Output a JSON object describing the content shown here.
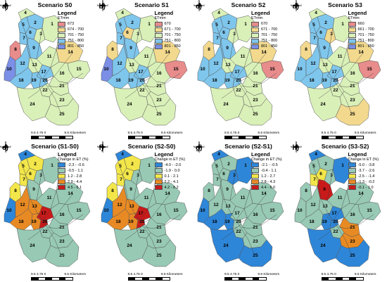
{
  "units_km": "9.5 4.75 0",
  "units_km_end": "9.5 Kilometers",
  "colors": {
    "et": [
      "#e88c8c",
      "#f2d98e",
      "#d9f0b8",
      "#7fc6ec",
      "#7b8fe6"
    ],
    "chg_s1": [
      "#2e86d8",
      "#97c9b4",
      "#f2e64a",
      "#e88a24",
      "#c81a1a"
    ],
    "chg_s3": [
      "#2e86d8",
      "#97c9b4",
      "#f2e64a",
      "#e88a24",
      "#c81a1a"
    ]
  },
  "panels": [
    {
      "label": "a)",
      "title": "Scenario S0",
      "legend_title": "Legend",
      "legend_unit": "ETmm",
      "legend": [
        "673",
        "674 - 700",
        "701 - 750",
        "751 - 800",
        "801 - 850"
      ]
    },
    {
      "label": "b)",
      "title": "Scenario S1",
      "legend_title": "Legend",
      "legend_unit": "ETmm",
      "legend": [
        "670",
        "671 - 700",
        "701 - 750",
        "751 - 800",
        "801 - 850"
      ]
    },
    {
      "label": "c)",
      "title": "Scenario S2",
      "legend_title": "Legend",
      "legend_unit": "ETmm",
      "legend": [
        "670",
        "671 - 700",
        "701 - 750",
        "751 - 800",
        "801 - 850"
      ]
    },
    {
      "label": "d)",
      "title": "Scenario S3",
      "legend_title": "Legend",
      "legend_unit": "ETmm",
      "legend": [
        "660",
        "661 - 700",
        "701 - 750",
        "751 - 800",
        "801 - 850"
      ]
    },
    {
      "label": "e)",
      "title": "Scenario (S1-S0)",
      "legend_title": "Legend",
      "legend_unit": "Change in ET (%)",
      "legend": [
        "-2.3 - -0.6",
        "-0.5 - 1.1",
        "1.2 - 2.8",
        "2.9 - 4.4",
        "4.5 - 6.1"
      ]
    },
    {
      "label": "f)",
      "title": "Scenario (S2-S0)",
      "legend_title": "Legend",
      "legend_unit": "Change in ET (%)",
      "legend": [
        "-4.0 - -2.0",
        "-1.9 - 0.0",
        "0.1 - 2.1",
        "2.2 - 4.1",
        "4.2 - 6.2"
      ]
    },
    {
      "label": "g)",
      "title": "Scenario (S2-S1)",
      "legend_title": "Legend",
      "legend_unit": "Change in ET (%)",
      "legend": [
        "-2.1 - -0.5",
        "-0.4 - 1.1",
        "1.2 - 2.7",
        "2.8 - 4.3",
        "4.4 - 6.0"
      ]
    },
    {
      "label": "h)",
      "title": "Scenario (S3-S2)",
      "legend_title": "Legend",
      "legend_unit": "Change in ET (%)",
      "legend": [
        "-5.0 - -3.8",
        "-3.7 - -2.6",
        "-2.5 - -1.4",
        "-1.3 - -0.2",
        "-0.1 - 1.0"
      ]
    }
  ],
  "subbasins": [
    "1",
    "2",
    "3",
    "4",
    "5",
    "6",
    "7",
    "8",
    "9",
    "10",
    "11",
    "12",
    "13",
    "14",
    "15",
    "16",
    "17",
    "18",
    "19",
    "20",
    "21",
    "22",
    "23",
    "24",
    "25"
  ],
  "north_labels": {
    "n": "N",
    "s": "S",
    "e": "E",
    "w": "W"
  },
  "fills": {
    "a": {
      "1": "#d9f0b8",
      "2": "#7fc6ec",
      "3": "#d9f0b8",
      "4": "#d9f0b8",
      "5": "#7fc6ec",
      "6": "#7fc6ec",
      "7": "#7fc6ec",
      "8": "#e88c8c",
      "9": "#7fc6ec",
      "10": "#7b8fe6",
      "11": "#d9f0b8",
      "12": "#7fc6ec",
      "13": "#d9f0b8",
      "14": "#f2d98e",
      "15": "#d9f0b8",
      "16": "#d9f0b8",
      "17": "#7fc6ec",
      "18": "#7fc6ec",
      "19": "#7fc6ec",
      "20": "#7fc6ec",
      "21": "#d9f0b8",
      "22": "#d9f0b8",
      "23": "#d9f0b8",
      "24": "#d9f0b8",
      "25": "#d9f0b8"
    },
    "b": {
      "1": "#d9f0b8",
      "2": "#7fc6ec",
      "3": "#d9f0b8",
      "4": "#d9f0b8",
      "5": "#7fc6ec",
      "6": "#f2d98e",
      "7": "#7fc6ec",
      "8": "#f2d98e",
      "9": "#7fc6ec",
      "10": "#7b8fe6",
      "11": "#d9f0b8",
      "12": "#7fc6ec",
      "13": "#d9f0b8",
      "14": "#f2d98e",
      "15": "#e88c8c",
      "16": "#d9f0b8",
      "17": "#7fc6ec",
      "18": "#7fc6ec",
      "19": "#7fc6ec",
      "20": "#7fc6ec",
      "21": "#d9f0b8",
      "22": "#d9f0b8",
      "23": "#d9f0b8",
      "24": "#d9f0b8",
      "25": "#d9f0b8"
    },
    "c": {
      "1": "#d9f0b8",
      "2": "#7fc6ec",
      "3": "#d9f0b8",
      "4": "#d9f0b8",
      "5": "#7fc6ec",
      "6": "#7fc6ec",
      "7": "#7fc6ec",
      "8": "#f2d98e",
      "9": "#7fc6ec",
      "10": "#7fc6ec",
      "11": "#d9f0b8",
      "12": "#7fc6ec",
      "13": "#d9f0b8",
      "14": "#f2d98e",
      "15": "#e88c8c",
      "16": "#d9f0b8",
      "17": "#7fc6ec",
      "18": "#7fc6ec",
      "19": "#7fc6ec",
      "20": "#7fc6ec",
      "21": "#d9f0b8",
      "22": "#d9f0b8",
      "23": "#d9f0b8",
      "24": "#d9f0b8",
      "25": "#d9f0b8"
    },
    "d": {
      "1": "#d9f0b8",
      "2": "#7fc6ec",
      "3": "#f2d98e",
      "4": "#d9f0b8",
      "5": "#7fc6ec",
      "6": "#7fc6ec",
      "7": "#7fc6ec",
      "8": "#f2d98e",
      "9": "#7fc6ec",
      "10": "#7fc6ec",
      "11": "#d9f0b8",
      "12": "#7fc6ec",
      "13": "#d9f0b8",
      "14": "#f2d98e",
      "15": "#e88c8c",
      "16": "#d9f0b8",
      "17": "#7fc6ec",
      "18": "#7fc6ec",
      "19": "#7fc6ec",
      "20": "#7fc6ec",
      "21": "#d9f0b8",
      "22": "#d9f0b8",
      "23": "#d9f0b8",
      "24": "#d9f0b8",
      "25": "#f2d98e"
    },
    "e": {
      "1": "#97c9b4",
      "2": "#f2e64a",
      "3": "#97c9b4",
      "4": "#2e86d8",
      "5": "#f2e64a",
      "6": "#f2e64a",
      "7": "#f2e64a",
      "8": "#f2e64a",
      "9": "#97c9b4",
      "10": "#2e86d8",
      "11": "#97c9b4",
      "12": "#e88a24",
      "13": "#e88a24",
      "14": "#97c9b4",
      "15": "#97c9b4",
      "16": "#97c9b4",
      "17": "#c81a1a",
      "18": "#e88a24",
      "19": "#e88a24",
      "20": "#c81a1a",
      "21": "#97c9b4",
      "22": "#97c9b4",
      "23": "#97c9b4",
      "24": "#97c9b4",
      "25": "#97c9b4"
    },
    "f": {
      "1": "#97c9b4",
      "2": "#f2e64a",
      "3": "#97c9b4",
      "4": "#2e86d8",
      "5": "#f2e64a",
      "6": "#f2e64a",
      "7": "#f2e64a",
      "8": "#f2e64a",
      "9": "#97c9b4",
      "10": "#2e86d8",
      "11": "#97c9b4",
      "12": "#e88a24",
      "13": "#e88a24",
      "14": "#97c9b4",
      "15": "#97c9b4",
      "16": "#97c9b4",
      "17": "#c81a1a",
      "18": "#e88a24",
      "19": "#e88a24",
      "20": "#c81a1a",
      "21": "#97c9b4",
      "22": "#97c9b4",
      "23": "#97c9b4",
      "24": "#97c9b4",
      "25": "#97c9b4"
    },
    "g": {
      "1": "#2e86d8",
      "2": "#97c9b4",
      "3": "#2e86d8",
      "4": "#2e86d8",
      "5": "#97c9b4",
      "6": "#97c9b4",
      "7": "#97c9b4",
      "8": "#97c9b4",
      "9": "#97c9b4",
      "10": "#2e86d8",
      "11": "#97c9b4",
      "12": "#97c9b4",
      "13": "#97c9b4",
      "14": "#97c9b4",
      "15": "#97c9b4",
      "16": "#97c9b4",
      "17": "#97c9b4",
      "18": "#2e86d8",
      "19": "#2e86d8",
      "20": "#97c9b4",
      "21": "#97c9b4",
      "22": "#97c9b4",
      "23": "#97c9b4",
      "24": "#2e86d8",
      "25": "#2e86d8"
    },
    "h": {
      "1": "#2e86d8",
      "2": "#97c9b4",
      "3": "#97c9b4",
      "4": "#2e86d8",
      "5": "#97c9b4",
      "6": "#f2e64a",
      "7": "#f2e64a",
      "8": "#97c9b4",
      "9": "#c81a1a",
      "10": "#97c9b4",
      "11": "#97c9b4",
      "12": "#97c9b4",
      "13": "#97c9b4",
      "14": "#97c9b4",
      "15": "#97c9b4",
      "16": "#97c9b4",
      "17": "#2e86d8",
      "18": "#97c9b4",
      "19": "#2e86d8",
      "20": "#2e86d8",
      "21": "#e88a24",
      "22": "#97c9b4",
      "23": "#e88a24",
      "24": "#2e86d8",
      "25": "#2e86d8"
    }
  }
}
